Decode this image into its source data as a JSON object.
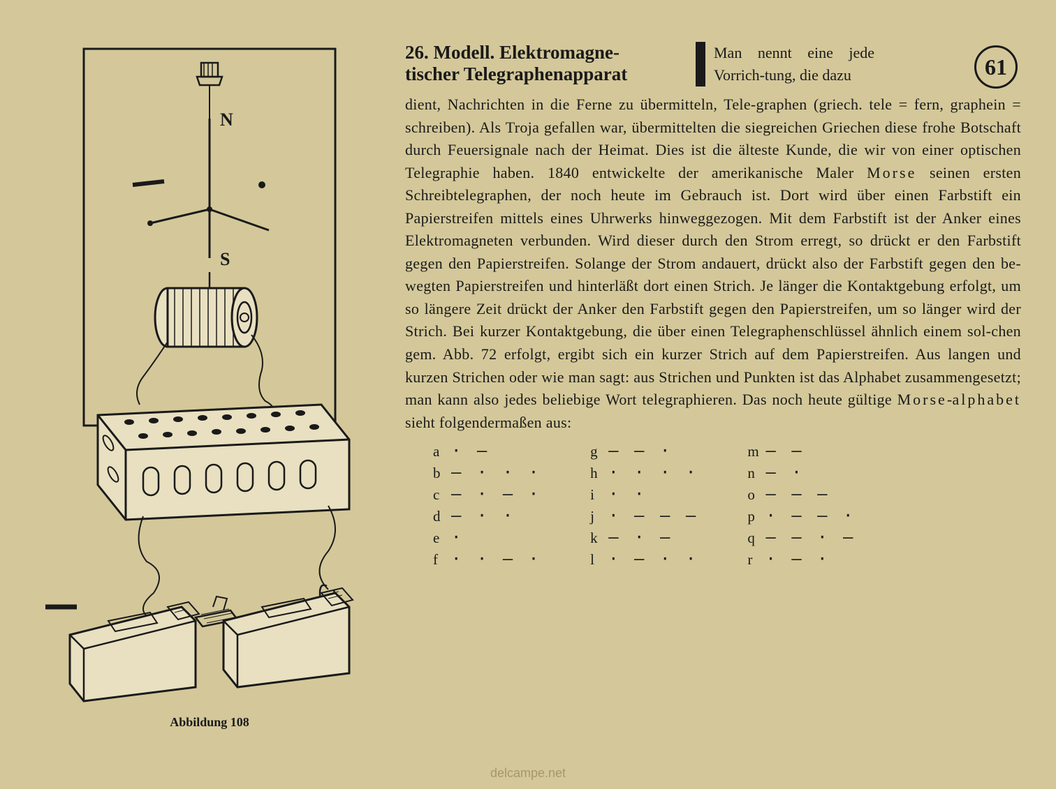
{
  "page_number": "61",
  "heading_line1": "26. Modell. Elektromagne-",
  "heading_line2": "tischer Telegraphenapparat",
  "intro_fragment": "Man nennt eine jede Vorrich-tung, die dazu",
  "body_text": "dient, Nachrichten in die Ferne zu übermitteln, Tele-graphen (griech. tele = fern, graphein = schreiben). Als Troja gefallen war, übermittelten die siegreichen Griechen diese frohe Botschaft durch Feuersignale nach der Heimat. Dies ist die älteste Kunde, die wir von einer optischen Telegraphie haben. 1840 entwickelte der amerikanische Maler Morse seinen ersten Schreibtelegraphen, der noch heute im Gebrauch ist. Dort wird über einen Farbstift ein Papierstreifen mittels eines Uhrwerks hinweggezogen. Mit dem Farbstift ist der Anker eines Elektromagneten verbunden. Wird dieser durch den Strom erregt, so drückt er den Farbstift gegen den Papierstreifen. Solange der Strom andauert, drückt also der Farbstift gegen den be-wegten Papierstreifen und hinterläßt dort einen Strich. Je länger die Kontaktgebung erfolgt, um so längere Zeit drückt der Anker den Farbstift gegen den Papierstreifen, um so länger wird der Strich. Bei kurzer Kontaktgebung, die über einen Telegraphenschlüssel ähnlich einem sol-chen gem. Abb. 72 erfolgt, ergibt sich ein kurzer Strich auf dem Papierstreifen. Aus langen und kurzen Strichen oder wie man sagt: aus Strichen und Punkten ist das Alphabet zusammengesetzt; man kann also jedes beliebige Wort telegraphieren. Das noch heute gültige Morse-alphabet sieht folgendermaßen aus:",
  "morse": {
    "col1": [
      {
        "letter": "a",
        "code": "· —"
      },
      {
        "letter": "b",
        "code": "— · · ·"
      },
      {
        "letter": "c",
        "code": "— · — ·"
      },
      {
        "letter": "d",
        "code": "— · ·"
      },
      {
        "letter": "e",
        "code": "·"
      },
      {
        "letter": "f",
        "code": "· · — ·"
      }
    ],
    "col2": [
      {
        "letter": "g",
        "code": "— — ·"
      },
      {
        "letter": "h",
        "code": "· · · ·"
      },
      {
        "letter": "i",
        "code": "· ·"
      },
      {
        "letter": "j",
        "code": "· — — —"
      },
      {
        "letter": "k",
        "code": "— · —"
      },
      {
        "letter": "l",
        "code": "· — · ·"
      }
    ],
    "col3": [
      {
        "letter": "m",
        "code": "— —"
      },
      {
        "letter": "n",
        "code": "— ·"
      },
      {
        "letter": "o",
        "code": "— — —"
      },
      {
        "letter": "p",
        "code": "· — — ·"
      },
      {
        "letter": "q",
        "code": "— — · —"
      },
      {
        "letter": "r",
        "code": "· — ·"
      }
    ]
  },
  "figure_caption": "Abbildung 108",
  "watermark": "delcampe.net",
  "illustration": {
    "label_n": "N",
    "label_s": "S",
    "colors": {
      "stroke": "#1a1a1a",
      "fill_light": "#d4c89a",
      "fill_white": "#e8e0c0"
    }
  }
}
